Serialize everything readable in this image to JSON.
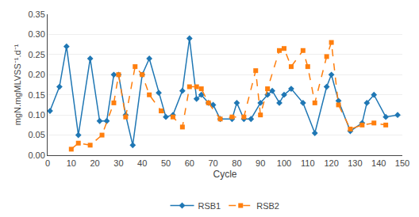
{
  "chart_data": {
    "type": "line",
    "xlabel": "Cycle",
    "ylabel": "mgN.mgMLVSS⁻¹.d⁻¹",
    "series": [
      {
        "name": "RSB1",
        "marker": "diamond",
        "line_style": "solid",
        "x": [
          1,
          5,
          8,
          13,
          18,
          22,
          25,
          28,
          30,
          33,
          36,
          40,
          43,
          47,
          50,
          53,
          57,
          60,
          63,
          65,
          68,
          70,
          73,
          78,
          80,
          83,
          86,
          90,
          93,
          95,
          98,
          100,
          103,
          108,
          113,
          118,
          120,
          123,
          128,
          133,
          135,
          138,
          143,
          148
        ],
        "values": [
          0.11,
          0.17,
          0.27,
          0.05,
          0.24,
          0.085,
          0.085,
          0.2,
          0.2,
          0.1,
          0.025,
          0.2,
          0.24,
          0.155,
          0.095,
          0.1,
          0.16,
          0.29,
          0.14,
          0.15,
          0.13,
          0.125,
          0.09,
          0.09,
          0.13,
          0.09,
          0.09,
          0.13,
          0.15,
          0.16,
          0.13,
          0.15,
          0.165,
          0.13,
          0.055,
          0.17,
          0.2,
          0.135,
          0.06,
          0.08,
          0.13,
          0.15,
          0.095,
          0.1
        ]
      },
      {
        "name": "RSB2",
        "marker": "square",
        "line_style": "dash",
        "x": [
          10,
          13,
          18,
          23,
          28,
          30,
          33,
          37,
          40,
          43,
          48,
          53,
          57,
          60,
          63,
          65,
          68,
          73,
          78,
          83,
          88,
          90,
          93,
          98,
          100,
          103,
          108,
          110,
          113,
          118,
          120,
          123,
          128,
          133,
          138,
          143
        ],
        "values": [
          0.015,
          0.03,
          0.025,
          0.05,
          0.13,
          0.2,
          0.095,
          0.22,
          0.2,
          0.15,
          0.11,
          0.095,
          0.07,
          0.17,
          0.17,
          0.165,
          0.13,
          0.09,
          0.095,
          0.095,
          0.21,
          0.1,
          0.165,
          0.26,
          0.265,
          0.22,
          0.26,
          0.22,
          0.13,
          0.245,
          0.28,
          0.125,
          0.065,
          0.075,
          0.08,
          0.075
        ]
      }
    ],
    "xlim": [
      0,
      150
    ],
    "xticks": [
      0,
      10,
      20,
      30,
      40,
      50,
      60,
      70,
      80,
      90,
      100,
      110,
      120,
      130,
      140,
      150
    ],
    "ylim": [
      0,
      0.35
    ],
    "yticks": [
      {
        "value": 0,
        "label": "0.00"
      },
      0.05,
      {
        "value": 0.1,
        "label": "0.10"
      },
      0.15,
      {
        "value": 0.2,
        "label": "0.20"
      },
      0.25,
      {
        "value": 0.3,
        "label": "0.30"
      },
      0.35
    ],
    "grid": "y",
    "legend": "bottom"
  }
}
